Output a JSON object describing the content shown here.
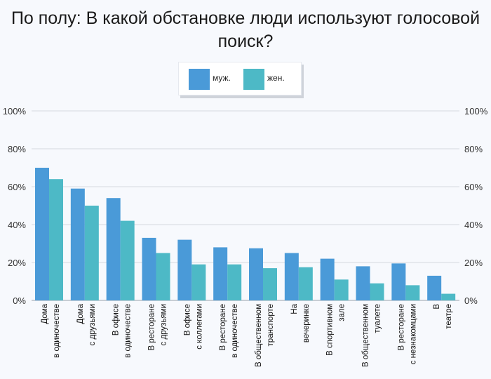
{
  "chart_data": {
    "type": "bar",
    "title_lines": [
      "По полу: В какой обстановке люди используют голосовой",
      "поиск?"
    ],
    "categories": [
      [
        "Дома",
        "в одиночестве"
      ],
      [
        "Дома",
        "с друзьями"
      ],
      [
        "В офисе",
        "в одиночестве"
      ],
      [
        "В ресторане",
        "с друзьями"
      ],
      [
        "В офисе",
        "с коллегами"
      ],
      [
        "В ресторане",
        "в одиночестве"
      ],
      [
        "В общественном",
        "транспорте"
      ],
      [
        "На",
        "вечеринке"
      ],
      [
        "В спортивном",
        "зале"
      ],
      [
        "В общественном",
        "туалете"
      ],
      [
        "В ресторане",
        "с незнакомцами"
      ],
      [
        "В",
        "театре"
      ]
    ],
    "series": [
      {
        "name": "муж.",
        "color": "#4a9ad8",
        "values": [
          70,
          59,
          54,
          33,
          32,
          28,
          27.5,
          25,
          22,
          18,
          19.5,
          13
        ]
      },
      {
        "name": "жен.",
        "color": "#4db9c6",
        "values": [
          64,
          50,
          42,
          25,
          19,
          19,
          17,
          17.5,
          11,
          9,
          8,
          3.5
        ]
      }
    ],
    "ylim": [
      0,
      100
    ],
    "yticks": [
      "0%",
      "20%",
      "40%",
      "60%",
      "80%",
      "100%"
    ],
    "ytick_values": [
      0,
      20,
      40,
      60,
      80,
      100
    ],
    "grid": true,
    "legend_position": "top-center",
    "xlabel": "",
    "ylabel": ""
  }
}
